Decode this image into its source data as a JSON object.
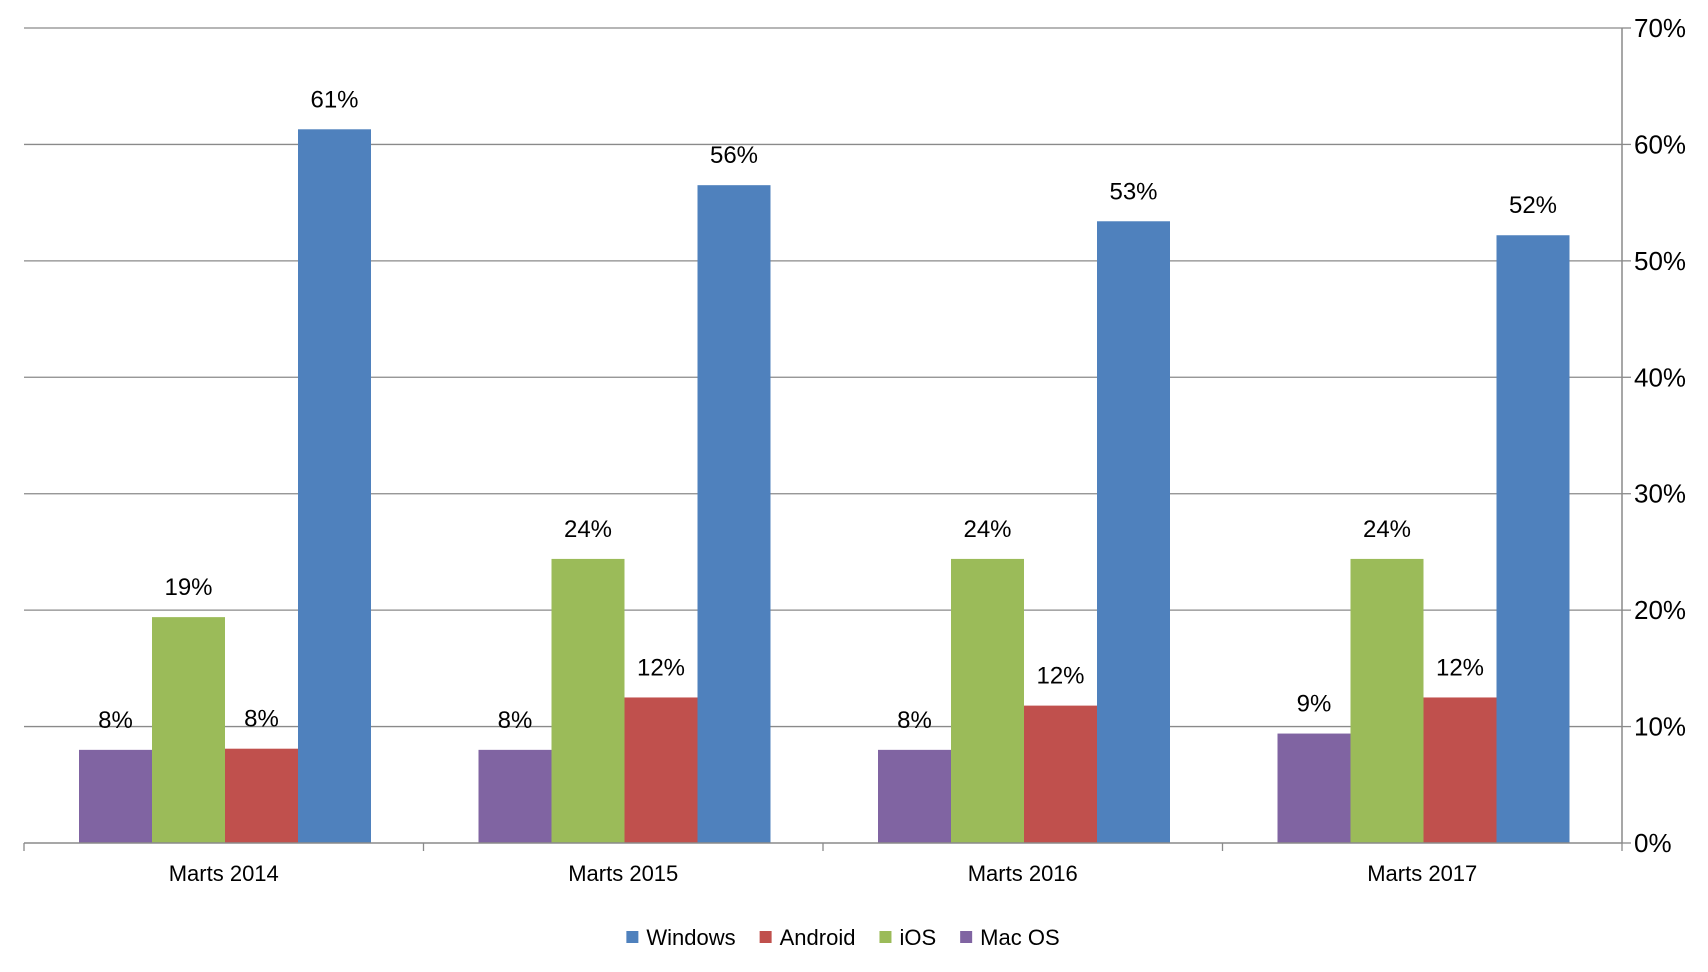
{
  "chart_data": {
    "type": "bar",
    "title": "",
    "xlabel": "",
    "ylabel": "",
    "categories": [
      "Marts 2014",
      "Marts 2015",
      "Marts 2016",
      "Marts 2017"
    ],
    "series": [
      {
        "name": "Mac OS",
        "color": "#8064A2",
        "values": [
          8,
          8,
          8,
          9.4
        ],
        "labels": [
          "8%",
          "8%",
          "8%",
          "9%"
        ]
      },
      {
        "name": "iOS",
        "color": "#9BBB59",
        "values": [
          19.4,
          24.4,
          24.4,
          24.4
        ],
        "labels": [
          "19%",
          "24%",
          "24%",
          "24%"
        ]
      },
      {
        "name": "Android",
        "color": "#C0504D",
        "values": [
          8.1,
          12.5,
          11.8,
          12.5
        ],
        "labels": [
          "8%",
          "12%",
          "12%",
          "12%"
        ]
      },
      {
        "name": "Windows",
        "color": "#4F81BD",
        "values": [
          61.3,
          56.5,
          53.4,
          52.2
        ],
        "labels": [
          "61%",
          "56%",
          "53%",
          "52%"
        ]
      }
    ],
    "ylim": [
      0,
      70
    ],
    "y_ticks": [
      "0%",
      "10%",
      "20%",
      "30%",
      "40%",
      "50%",
      "60%",
      "70%"
    ],
    "y_axis_side": "right",
    "grid": true,
    "legend_position": "bottom",
    "legend_order": [
      "Windows",
      "Android",
      "iOS",
      "Mac OS"
    ]
  }
}
